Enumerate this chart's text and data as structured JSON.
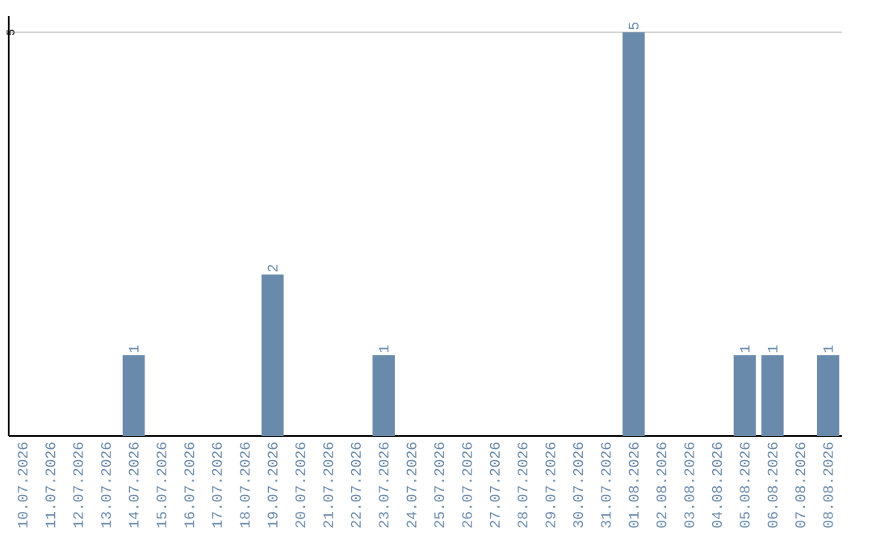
{
  "chart_data": {
    "type": "bar",
    "categories": [
      "10.07.2026",
      "11.07.2026",
      "12.07.2026",
      "13.07.2026",
      "14.07.2026",
      "15.07.2026",
      "16.07.2026",
      "17.07.2026",
      "18.07.2026",
      "19.07.2026",
      "20.07.2026",
      "21.07.2026",
      "22.07.2026",
      "23.07.2026",
      "24.07.2026",
      "25.07.2026",
      "26.07.2026",
      "27.07.2026",
      "28.07.2026",
      "29.07.2026",
      "30.07.2026",
      "31.07.2026",
      "01.08.2026",
      "02.08.2026",
      "03.08.2026",
      "04.08.2026",
      "05.08.2026",
      "06.08.2026",
      "07.08.2026",
      "08.08.2026"
    ],
    "values": [
      0,
      0,
      0,
      0,
      1,
      0,
      0,
      0,
      0,
      2,
      0,
      0,
      0,
      1,
      0,
      0,
      0,
      0,
      0,
      0,
      0,
      0,
      5,
      0,
      0,
      0,
      1,
      1,
      0,
      1
    ],
    "value_labels": [
      null,
      null,
      null,
      null,
      "1",
      null,
      null,
      null,
      null,
      "2",
      null,
      null,
      null,
      "1",
      null,
      null,
      null,
      null,
      null,
      null,
      null,
      null,
      "5",
      null,
      null,
      null,
      "1",
      "1",
      null,
      "1"
    ],
    "color": "#6a8aab",
    "ylim": [
      0,
      5.2
    ],
    "yticks": [
      5
    ],
    "grid": "y"
  }
}
